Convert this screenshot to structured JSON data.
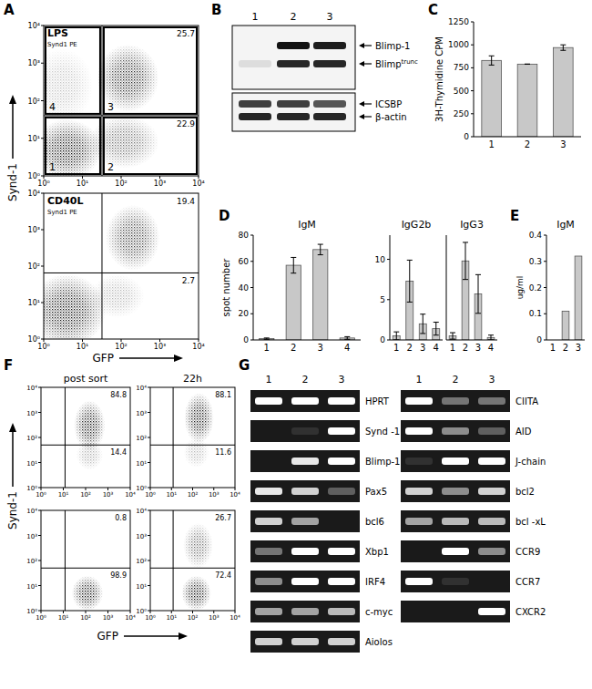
{
  "panel_labels": [
    "A",
    "B",
    "C",
    "D",
    "E",
    "F",
    "G"
  ],
  "flow_axis_labels": {
    "x": "GFP",
    "y": "Synd-1"
  },
  "chart_data": [
    {
      "type": "flow",
      "title": "LPS",
      "subtitle": "Synd1 PE",
      "log": true,
      "xlim": [
        1,
        10000
      ],
      "ylim": [
        1,
        10000
      ],
      "xticks": [
        {
          "value": 1,
          "label": "10⁰"
        },
        {
          "value": 10,
          "label": "10¹"
        },
        {
          "value": 100,
          "label": "10²"
        },
        {
          "value": 1000,
          "label": "10³"
        },
        {
          "value": 10000,
          "label": "10⁴"
        }
      ],
      "yticks": [
        {
          "value": 1,
          "label": "10⁰"
        },
        {
          "value": 10,
          "label": "10¹"
        },
        {
          "value": 100,
          "label": "10²"
        },
        {
          "value": 1000,
          "label": "10³"
        },
        {
          "value": 10000,
          "label": "10⁴"
        }
      ],
      "gates": {
        "x": 32,
        "y": 40
      },
      "quadrants": [
        {
          "position": "lower left",
          "label": "1"
        },
        {
          "position": "lower right",
          "label": "2",
          "value": 22.9
        },
        {
          "position": "upper right",
          "label": "3",
          "value": 25.7
        },
        {
          "position": "upper left",
          "label": "4"
        }
      ],
      "populations": [
        {
          "x": 4,
          "y": 5,
          "x_sd": 0.45,
          "y_sd": 0.4,
          "density": 1
        },
        {
          "x": 150,
          "y": 400,
          "x_sd": 0.4,
          "y_sd": 0.45,
          "density": 0.9
        },
        {
          "x": 120,
          "y": 8,
          "x_sd": 0.45,
          "y_sd": 0.35,
          "density": 0.6
        },
        {
          "x": 3,
          "y": 250,
          "x_sd": 0.4,
          "y_sd": 0.5,
          "density": 0.25
        }
      ]
    },
    {
      "type": "flow",
      "title": "CD40L",
      "subtitle": "Synd1 PE",
      "log": true,
      "xlim": [
        1,
        10000
      ],
      "ylim": [
        1,
        10000
      ],
      "xticks": [
        {
          "value": 1,
          "label": "10⁰"
        },
        {
          "value": 10,
          "label": "10¹"
        },
        {
          "value": 100,
          "label": "10²"
        },
        {
          "value": 1000,
          "label": "10³"
        },
        {
          "value": 10000,
          "label": "10⁴"
        }
      ],
      "yticks": [
        {
          "value": 1,
          "label": "10⁰"
        },
        {
          "value": 10,
          "label": "10¹"
        },
        {
          "value": 100,
          "label": "10²"
        },
        {
          "value": 1000,
          "label": "10³"
        },
        {
          "value": 10000,
          "label": "10⁴"
        }
      ],
      "gates": {
        "x": 32,
        "y": 65
      },
      "quadrants": [
        {
          "position": "upper right",
          "value": 19.4
        },
        {
          "position": "lower right",
          "value": 2.7
        }
      ],
      "populations": [
        {
          "x": 4,
          "y": 6,
          "x_sd": 0.5,
          "y_sd": 0.5,
          "density": 1
        },
        {
          "x": 200,
          "y": 600,
          "x_sd": 0.35,
          "y_sd": 0.45,
          "density": 0.8
        },
        {
          "x": 80,
          "y": 15,
          "x_sd": 0.35,
          "y_sd": 0.3,
          "density": 0.3
        }
      ]
    },
    {
      "type": "flow",
      "title": "post sort",
      "log": true,
      "xlim": [
        1,
        10000
      ],
      "ylim": [
        1,
        10000
      ],
      "xticks": [
        {
          "value": 1,
          "label": "10⁰"
        },
        {
          "value": 10,
          "label": "10¹"
        },
        {
          "value": 100,
          "label": "10²"
        },
        {
          "value": 1000,
          "label": "10³"
        },
        {
          "value": 10000,
          "label": "10⁴"
        }
      ],
      "yticks": [
        {
          "value": 1,
          "label": "10⁰"
        },
        {
          "value": 10,
          "label": "10¹"
        },
        {
          "value": 100,
          "label": "10²"
        },
        {
          "value": 1000,
          "label": "10³"
        },
        {
          "value": 10000,
          "label": "10⁴"
        }
      ],
      "gates": {
        "x": 12,
        "y": 50
      },
      "quadrants": [
        {
          "position": "upper right",
          "value": 84.8
        },
        {
          "position": "lower right",
          "value": 14.4
        }
      ],
      "populations": [
        {
          "x": 150,
          "y": 300,
          "x_sd": 0.35,
          "y_sd": 0.5,
          "density": 1
        },
        {
          "x": 150,
          "y": 20,
          "x_sd": 0.3,
          "y_sd": 0.3,
          "density": 0.35
        }
      ]
    },
    {
      "type": "flow",
      "title": "22h",
      "log": true,
      "xlim": [
        1,
        10000
      ],
      "ylim": [
        1,
        10000
      ],
      "xticks": [
        {
          "value": 1,
          "label": "10⁰"
        },
        {
          "value": 10,
          "label": "10¹"
        },
        {
          "value": 100,
          "label": "10²"
        },
        {
          "value": 1000,
          "label": "10³"
        },
        {
          "value": 10000,
          "label": "10⁴"
        }
      ],
      "yticks": [
        {
          "value": 1,
          "label": "10⁰"
        },
        {
          "value": 10,
          "label": "10¹"
        },
        {
          "value": 100,
          "label": "10²"
        },
        {
          "value": 1000,
          "label": "10³"
        },
        {
          "value": 10000,
          "label": "10⁴"
        }
      ],
      "gates": {
        "x": 12,
        "y": 50
      },
      "quadrants": [
        {
          "position": "upper right",
          "value": 88.1
        },
        {
          "position": "lower right",
          "value": 11.6
        }
      ],
      "populations": [
        {
          "x": 200,
          "y": 600,
          "x_sd": 0.35,
          "y_sd": 0.5,
          "density": 1
        },
        {
          "x": 150,
          "y": 25,
          "x_sd": 0.3,
          "y_sd": 0.3,
          "density": 0.3
        }
      ]
    },
    {
      "type": "flow",
      "log": true,
      "xlim": [
        1,
        10000
      ],
      "ylim": [
        1,
        10000
      ],
      "xticks": [
        {
          "value": 1,
          "label": "10⁰"
        },
        {
          "value": 10,
          "label": "10¹"
        },
        {
          "value": 100,
          "label": "10²"
        },
        {
          "value": 1000,
          "label": "10³"
        },
        {
          "value": 10000,
          "label": "10⁴"
        }
      ],
      "yticks": [
        {
          "value": 1,
          "label": "10⁰"
        },
        {
          "value": 10,
          "label": "10¹"
        },
        {
          "value": 100,
          "label": "10²"
        },
        {
          "value": 1000,
          "label": "10³"
        },
        {
          "value": 10000,
          "label": "10⁴"
        }
      ],
      "gates": {
        "x": 12,
        "y": 50
      },
      "quadrants": [
        {
          "position": "upper right",
          "value": 0.8
        },
        {
          "position": "lower right",
          "value": 98.9
        }
      ],
      "populations": [
        {
          "x": 120,
          "y": 5,
          "x_sd": 0.35,
          "y_sd": 0.35,
          "density": 1
        }
      ]
    },
    {
      "type": "flow",
      "log": true,
      "xlim": [
        1,
        10000
      ],
      "ylim": [
        1,
        10000
      ],
      "xticks": [
        {
          "value": 1,
          "label": "10⁰"
        },
        {
          "value": 10,
          "label": "10¹"
        },
        {
          "value": 100,
          "label": "10²"
        },
        {
          "value": 1000,
          "label": "10³"
        },
        {
          "value": 10000,
          "label": "10⁴"
        }
      ],
      "yticks": [
        {
          "value": 1,
          "label": "10⁰"
        },
        {
          "value": 10,
          "label": "10¹"
        },
        {
          "value": 100,
          "label": "10²"
        },
        {
          "value": 1000,
          "label": "10³"
        },
        {
          "value": 10000,
          "label": "10⁴"
        }
      ],
      "gates": {
        "x": 12,
        "y": 50
      },
      "quadrants": [
        {
          "position": "upper right",
          "value": 26.7
        },
        {
          "position": "lower right",
          "value": 72.4
        }
      ],
      "populations": [
        {
          "x": 150,
          "y": 5,
          "x_sd": 0.35,
          "y_sd": 0.35,
          "density": 1
        },
        {
          "x": 180,
          "y": 400,
          "x_sd": 0.35,
          "y_sd": 0.45,
          "density": 0.6
        }
      ]
    },
    {
      "type": "bar",
      "y_label": "3H-Thymidine CPM",
      "categories": [
        "1",
        "2",
        "3"
      ],
      "values": [
        830,
        790,
        970
      ],
      "errors": [
        50,
        0,
        30
      ],
      "ylim": [
        0,
        1250
      ],
      "yticks": [
        0,
        250,
        500,
        750,
        1000,
        1250
      ],
      "color": "#c8c8c8"
    },
    {
      "type": "bar",
      "title": "IgM",
      "y_label": "spot number",
      "categories": [
        "1",
        "2",
        "3",
        "4"
      ],
      "values": [
        1,
        57,
        69,
        1.5
      ],
      "errors": [
        0.5,
        6,
        4,
        1
      ],
      "ylim": [
        0,
        80
      ],
      "yticks": [
        0,
        20,
        40,
        60,
        80
      ],
      "color": "#c8c8c8"
    },
    {
      "type": "bar",
      "title": "IgG2b",
      "categories": [
        "1",
        "2",
        "3",
        "4"
      ],
      "values": [
        0.5,
        7.3,
        2,
        1.4
      ],
      "errors": [
        0.5,
        2.6,
        1.2,
        0.8
      ],
      "ylim": [
        0,
        13
      ],
      "yticks": [
        0,
        5,
        10
      ],
      "color": "#c8c8c8"
    },
    {
      "type": "bar",
      "title": "IgG3",
      "categories": [
        "1",
        "2",
        "3",
        "4"
      ],
      "values": [
        0.5,
        9.8,
        5.7,
        0.3
      ],
      "errors": [
        0.4,
        2.3,
        2.4,
        0.3
      ],
      "ylim": [
        0,
        13
      ],
      "yticks": [
        0,
        5,
        10
      ],
      "tick_labels": "x",
      "color": "#c8c8c8"
    },
    {
      "type": "bar",
      "title": "IgM",
      "y_label": "ug/ml",
      "categories": [
        "1",
        "2",
        "3"
      ],
      "values": [
        0,
        0.11,
        0.32
      ],
      "ylim": [
        0,
        0.4
      ],
      "yticks": [
        0,
        0.1,
        0.2,
        0.3,
        0.4
      ],
      "color": "#c8c8c8"
    }
  ],
  "blot": {
    "lanes": [
      "1",
      "2",
      "3"
    ],
    "boxes": [
      {
        "bands": [
          {
            "label": "Blimp-1",
            "intensity": [
              0,
              1,
              0.95
            ]
          },
          {
            "label": "Blimp",
            "superscript": "trunc",
            "intensity": [
              0.1,
              0.9,
              0.9
            ]
          }
        ]
      },
      {
        "bands": [
          {
            "label": "ICSBP",
            "intensity": [
              0.8,
              0.8,
              0.7
            ]
          },
          {
            "label": "β-actin",
            "intensity": [
              0.9,
              0.9,
              0.9
            ]
          }
        ]
      }
    ]
  },
  "gel": {
    "lanes": [
      "1",
      "2",
      "3"
    ],
    "columns": [
      [
        {
          "label": "HPRT",
          "intensity": [
            1,
            1,
            1
          ]
        },
        {
          "label": "Synd -1",
          "intensity": [
            0,
            0.1,
            1
          ]
        },
        {
          "label": "Blimp-1",
          "intensity": [
            0,
            0.9,
            1
          ]
        },
        {
          "label": "Pax5",
          "intensity": [
            0.9,
            0.8,
            0.3
          ]
        },
        {
          "label": "bcl6",
          "intensity": [
            0.8,
            0.6,
            0
          ]
        },
        {
          "label": "Xbp1",
          "intensity": [
            0.4,
            1,
            1
          ]
        },
        {
          "label": "IRF4",
          "intensity": [
            0.5,
            1,
            1
          ]
        },
        {
          "label": "c-myc",
          "intensity": [
            0.6,
            0.6,
            0.7
          ]
        },
        {
          "label": "Aiolos",
          "intensity": [
            0.8,
            0.8,
            0.8
          ]
        }
      ],
      [
        {
          "label": "CIITA",
          "intensity": [
            1,
            0.4,
            0.4
          ]
        },
        {
          "label": "AID",
          "intensity": [
            1,
            0.5,
            0.3
          ]
        },
        {
          "label": "J-chain",
          "intensity": [
            0.1,
            1,
            1
          ]
        },
        {
          "label": "bcl2",
          "intensity": [
            0.8,
            0.5,
            0.8
          ]
        },
        {
          "label": "bcl -xL",
          "intensity": [
            0.6,
            0.7,
            0.7
          ]
        },
        {
          "label": "CCR9",
          "intensity": [
            0,
            1,
            0.5
          ]
        },
        {
          "label": "CCR7",
          "intensity": [
            1,
            0.1,
            0
          ]
        },
        {
          "label": "CXCR2",
          "intensity": [
            0,
            0,
            1
          ]
        }
      ]
    ]
  }
}
